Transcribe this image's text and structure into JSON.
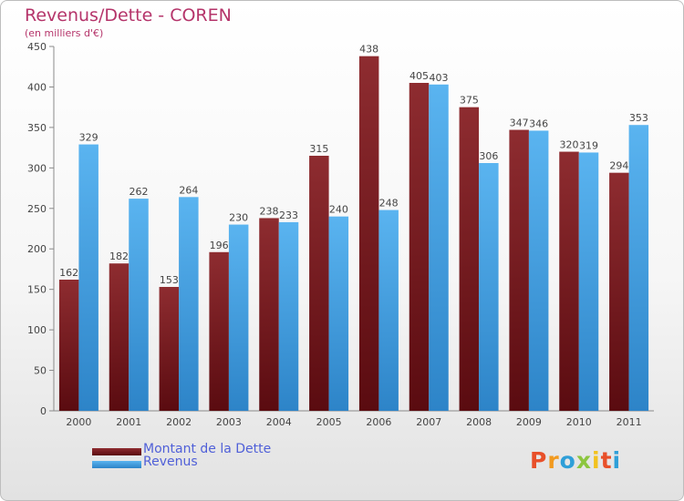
{
  "chart_data": {
    "type": "bar",
    "title": "Revenus/Dette - COREN",
    "subtitle": "(en milliers d'€)",
    "categories": [
      "2000",
      "2001",
      "2002",
      "2003",
      "2004",
      "2005",
      "2006",
      "2007",
      "2008",
      "2009",
      "2010",
      "2011"
    ],
    "series": [
      {
        "name": "Montant de la Dette",
        "color": "#7b1d22",
        "values": [
          162,
          182,
          153,
          196,
          238,
          315,
          438,
          405,
          375,
          347,
          320,
          294
        ]
      },
      {
        "name": "Revenus",
        "color": "#3d9be0",
        "values": [
          329,
          262,
          264,
          230,
          233,
          240,
          248,
          403,
          306,
          346,
          319,
          353
        ]
      }
    ],
    "ylim": [
      0,
      450
    ],
    "yticks": [
      0,
      50,
      100,
      150,
      200,
      250,
      300,
      350,
      400,
      450
    ],
    "grid": false,
    "legend_position": "bottom-left"
  },
  "branding": {
    "letters": [
      "P",
      "r",
      "o",
      "x",
      "i",
      "t",
      "i"
    ],
    "colors": [
      "#e8502a",
      "#f29a1f",
      "#2f9fd8",
      "#8cc63f",
      "#f2c21f",
      "#e8502a",
      "#2f9fd8"
    ]
  }
}
